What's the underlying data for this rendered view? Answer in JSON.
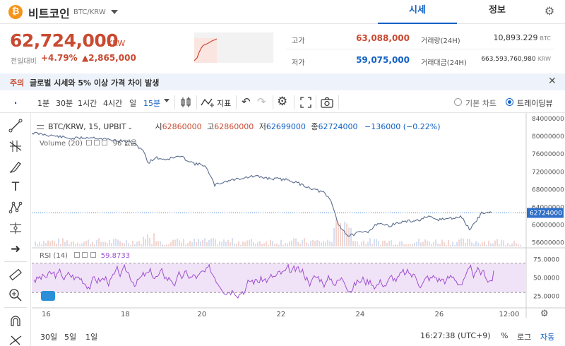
{
  "header": {
    "coin_symbol": "₿",
    "coin_name": "비트코인",
    "pair": "BTC/KRW",
    "tabs": [
      "시세",
      "정보"
    ]
  },
  "price": {
    "current": "62,724,000",
    "unit": "KRW",
    "change_label": "전일대비",
    "change_rate": "+4.79%",
    "change_amount": "▲2,865,000",
    "high_label": "고가",
    "high": "63,088,000",
    "low_label": "저가",
    "low": "59,075,000",
    "volume_label": "거래량(24H)",
    "volume": "10,893.229",
    "volume_unit": "BTC",
    "value_label": "거래대금(24H)",
    "value": "663,593,760,980",
    "value_unit": "KRW"
  },
  "notice": {
    "tag": "주의",
    "text": "글로벌 시세와 5% 이상 가격 차이 발생"
  },
  "toolbar": {
    "intervals": [
      "1분",
      "30분",
      "1시간",
      "4시간",
      "일",
      "15분"
    ],
    "indicator_label": "지표",
    "basic_chart": "기본 차트",
    "tradingview": "트레이딩뷰"
  },
  "legend": {
    "symbol": "BTC/KRW, 15, UPBIT",
    "open_label": "시",
    "open": "62860000",
    "high_label": "고",
    "high": "62860000",
    "low_label": "저",
    "low": "62699000",
    "close_label": "종",
    "close": "62724000",
    "change": "−136000 (−0.22%)",
    "volume_label": "Volume (20)",
    "volume_suffix": "96 없음",
    "rsi_label": "RSI (14)",
    "rsi_value": "59.8733"
  },
  "chart_data": {
    "type": "line",
    "title": "BTC/KRW, 15, UPBIT",
    "x": [
      "16",
      "18",
      "20",
      "22",
      "24",
      "26",
      "12:00"
    ],
    "price_ylim": [
      55000000,
      84000000
    ],
    "price_ticks": [
      "84000000",
      "80000000",
      "76000000",
      "72000000",
      "68000000",
      "64000000",
      "60000000",
      "56000000"
    ],
    "price_points": [
      [
        0.0,
        80800000
      ],
      [
        0.04,
        80200000
      ],
      [
        0.08,
        79500000
      ],
      [
        0.12,
        79800000
      ],
      [
        0.16,
        79200000
      ],
      [
        0.2,
        78700000
      ],
      [
        0.225,
        77000000
      ],
      [
        0.235,
        74000000
      ],
      [
        0.25,
        75200000
      ],
      [
        0.27,
        74800000
      ],
      [
        0.3,
        75500000
      ],
      [
        0.33,
        73800000
      ],
      [
        0.35,
        73500000
      ],
      [
        0.37,
        69000000
      ],
      [
        0.39,
        69800000
      ],
      [
        0.42,
        70500000
      ],
      [
        0.45,
        71000000
      ],
      [
        0.48,
        70500000
      ],
      [
        0.52,
        70200000
      ],
      [
        0.56,
        68500000
      ],
      [
        0.59,
        67300000
      ],
      [
        0.605,
        65500000
      ],
      [
        0.62,
        60200000
      ],
      [
        0.64,
        57500000
      ],
      [
        0.66,
        58200000
      ],
      [
        0.68,
        58500000
      ],
      [
        0.7,
        60500000
      ],
      [
        0.72,
        59800000
      ],
      [
        0.75,
        60700000
      ],
      [
        0.78,
        61000000
      ],
      [
        0.8,
        61800000
      ],
      [
        0.82,
        61200000
      ],
      [
        0.85,
        61500000
      ],
      [
        0.87,
        61800000
      ],
      [
        0.885,
        59000000
      ],
      [
        0.9,
        61000000
      ],
      [
        0.91,
        62800000
      ],
      [
        0.93,
        62724000
      ]
    ],
    "last_price_label": "62724000",
    "rsi_ylim": [
      10,
      90
    ],
    "rsi_ticks": [
      "75.0000",
      "50.0000",
      "25.0000"
    ],
    "rsi_value": 59.8733
  },
  "footer": {
    "ranges": [
      "30일",
      "5일",
      "1일"
    ],
    "time": "16:27:38 (UTC+9)",
    "percent": "%",
    "log": "로그",
    "auto": "자동"
  },
  "colors": {
    "up": "#c84a31",
    "down": "#1261c4",
    "rsi": "#9d4fd0",
    "rsi_band": "#f1e3f7"
  }
}
